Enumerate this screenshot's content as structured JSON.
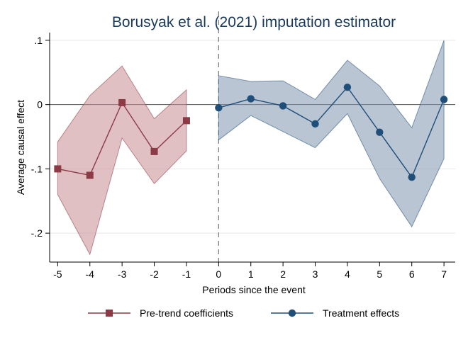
{
  "chart_data": {
    "type": "line",
    "title": "Borusyak et al. (2021) imputation estimator",
    "xlabel": "Periods since the event",
    "ylabel": "Average causal effect",
    "xlim": [
      -5.25,
      7.35
    ],
    "ylim": [
      -0.245,
      0.112
    ],
    "x_ticks": [
      -5,
      -4,
      -3,
      -2,
      -1,
      0,
      1,
      2,
      3,
      4,
      5,
      6,
      7
    ],
    "y_ticks": [
      {
        "value": 0.1,
        "label": ".1"
      },
      {
        "value": 0,
        "label": "0"
      },
      {
        "value": -0.1,
        "label": "-.1"
      },
      {
        "value": -0.2,
        "label": "-.2"
      }
    ],
    "grid": "horizontal",
    "reference_lines": {
      "y": 0,
      "x_dashed": 0
    },
    "legend_position": "bottom",
    "series": [
      {
        "name": "Pre-trend coefficients",
        "color": "#8b3a46",
        "band_fill": "#c98d94",
        "marker": "square",
        "x": [
          -5,
          -4,
          -3,
          -2,
          -1
        ],
        "values": [
          -0.1,
          -0.11,
          0.003,
          -0.073,
          -0.025
        ],
        "ci_low": [
          -0.14,
          -0.233,
          -0.052,
          -0.123,
          -0.072
        ],
        "ci_high": [
          -0.058,
          0.014,
          0.06,
          -0.022,
          0.023
        ]
      },
      {
        "name": "Treatment effects",
        "color": "#1f4e79",
        "band_fill": "#7f96ae",
        "marker": "circle",
        "x": [
          0,
          1,
          2,
          3,
          4,
          5,
          6,
          7
        ],
        "values": [
          -0.005,
          0.009,
          -0.002,
          -0.03,
          0.027,
          -0.043,
          -0.113,
          0.008
        ],
        "ci_low": [
          -0.055,
          -0.017,
          -0.042,
          -0.067,
          -0.014,
          -0.115,
          -0.19,
          -0.084
        ],
        "ci_high": [
          0.045,
          0.036,
          0.037,
          0.008,
          0.069,
          0.029,
          -0.036,
          0.1
        ]
      }
    ]
  }
}
